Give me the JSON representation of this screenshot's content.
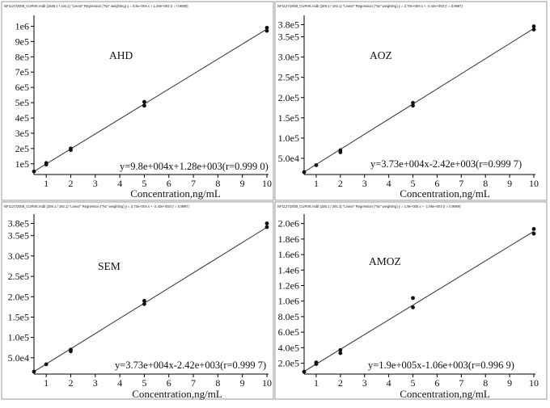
{
  "figure": {
    "charts": [
      {
        "header": "NF1127/2008_CURVE.mdb (2465.1 / 134.1)  \"Linear\"  Regression (\"Nx\" weighting)  y = 9.8e+004 x + 1.28e+003 (r = 0.9990)",
        "analyte": "AHD",
        "equation": "y=9.8e+004x+1.28e+003(r=0.999 0)",
        "xlabel": "Concentration,ng/mL",
        "yticks": [
          {
            "v": 100000,
            "label": "1e5"
          },
          {
            "v": 200000,
            "label": "2e5"
          },
          {
            "v": 300000,
            "label": "3e5"
          },
          {
            "v": 400000,
            "label": "4e5"
          },
          {
            "v": 500000,
            "label": "5e5"
          },
          {
            "v": 600000,
            "label": "6e5"
          },
          {
            "v": 700000,
            "label": "7e5"
          },
          {
            "v": 800000,
            "label": "8e5"
          },
          {
            "v": 900000,
            "label": "9e5"
          },
          {
            "v": 1000000,
            "label": "1e6"
          }
        ]
      },
      {
        "header": "NF1127/2008_CURVE.mdb (209.1 / 102.1)  \"Linear\"  Regression (\"Nx\" weighting)  y = 3.73e+004 x + -2.42e+003 (r = 0.9997)",
        "analyte": "AOZ",
        "equation": "y=3.73e+004x-2.42e+003(r=0.999 7)",
        "xlabel": "Concentration,ng/mL",
        "yticks": [
          {
            "v": 50000,
            "label": "5.0e4"
          },
          {
            "v": 100000,
            "label": "1.0e5"
          },
          {
            "v": 150000,
            "label": "1.5e5"
          },
          {
            "v": 200000,
            "label": "2.0e5"
          },
          {
            "v": 250000,
            "label": "2.5e5"
          },
          {
            "v": 300000,
            "label": "3.0e5"
          },
          {
            "v": 350000,
            "label": "3.5e5"
          },
          {
            "v": 380000,
            "label": "3.8e5"
          }
        ]
      },
      {
        "header": "NF1127/2008_CURVE.mdb (209.1 / 192.1)  \"Linear\"  Regression (\"Nx\" weighting)  y = 3.73e+004 x + -2.42e+003 (r = 0.9997)",
        "analyte": "SEM",
        "equation": "y=3.73e+004x-2.42e+003(r=0.999 7)",
        "xlabel": "Concentration,ng/mL",
        "yticks": [
          {
            "v": 50000,
            "label": "5.0e4"
          },
          {
            "v": 100000,
            "label": "1.0e5"
          },
          {
            "v": 150000,
            "label": "1.5e5"
          },
          {
            "v": 200000,
            "label": "2.0e5"
          },
          {
            "v": 250000,
            "label": "2.5e5"
          },
          {
            "v": 300000,
            "label": "3.0e5"
          },
          {
            "v": 350000,
            "label": "3.5e5"
          },
          {
            "v": 380000,
            "label": "3.8e5"
          }
        ]
      },
      {
        "header": "NF1127/2008_CURVE.mdb (335.1 / 291.3)  \"Linear\"  Regression (\"Nx\" weighting)  y = 1.9e+005 x + -1.06e+003 (r = 0.9969)",
        "analyte": "AMOZ",
        "equation": "y=1.9e+005x-1.06e+003(r=0.996 9)",
        "xlabel": "Concentration,ng/mL",
        "yticks": [
          {
            "v": 200000,
            "label": "2.0e5"
          },
          {
            "v": 400000,
            "label": "4.0e5"
          },
          {
            "v": 600000,
            "label": "6.0e5"
          },
          {
            "v": 800000,
            "label": "8.0e5"
          },
          {
            "v": 1000000,
            "label": "1.0e6"
          },
          {
            "v": 1200000,
            "label": "1.2e6"
          },
          {
            "v": 1400000,
            "label": "1.4e6"
          },
          {
            "v": 1600000,
            "label": "1.6e6"
          },
          {
            "v": 1800000,
            "label": "1.8e6"
          },
          {
            "v": 2000000,
            "label": "2.0e6"
          }
        ]
      }
    ]
  },
  "chart_data": [
    {
      "type": "scatter",
      "title": "AHD",
      "xlabel": "Concentration,ng/mL",
      "ylabel": "",
      "xlim": [
        0.5,
        10
      ],
      "ylim": [
        30000,
        1050000
      ],
      "xticks": [
        1,
        2,
        3,
        4,
        5,
        6,
        7,
        8,
        9,
        10
      ],
      "grid": false,
      "points": [
        {
          "x": 0.5,
          "y": 50000
        },
        {
          "x": 1,
          "y": 95000
        },
        {
          "x": 1,
          "y": 105000
        },
        {
          "x": 2,
          "y": 190000
        },
        {
          "x": 2,
          "y": 200000
        },
        {
          "x": 5,
          "y": 480000
        },
        {
          "x": 5,
          "y": 505000
        },
        {
          "x": 10,
          "y": 970000
        },
        {
          "x": 10,
          "y": 990000
        }
      ],
      "fit": {
        "slope": 98000,
        "intercept": 1280,
        "r": 0.999
      },
      "equation": "y=9.8e+004x+1.28e+003(r=0.999 0)"
    },
    {
      "type": "scatter",
      "title": "AOZ",
      "xlabel": "Concentration,ng/mL",
      "ylabel": "",
      "xlim": [
        0.5,
        10
      ],
      "ylim": [
        10000,
        395000
      ],
      "xticks": [
        1,
        2,
        3,
        4,
        5,
        6,
        7,
        8,
        9,
        10
      ],
      "grid": false,
      "points": [
        {
          "x": 0.5,
          "y": 16000
        },
        {
          "x": 1,
          "y": 33000
        },
        {
          "x": 2,
          "y": 65000
        },
        {
          "x": 2,
          "y": 70000
        },
        {
          "x": 5,
          "y": 180000
        },
        {
          "x": 5,
          "y": 187000
        },
        {
          "x": 10,
          "y": 368000
        },
        {
          "x": 10,
          "y": 376000
        }
      ],
      "fit": {
        "slope": 37300,
        "intercept": -2420,
        "r": 0.9997
      },
      "equation": "y=3.73e+004x-2.42e+003(r=0.999 7)"
    },
    {
      "type": "scatter",
      "title": "SEM",
      "xlabel": "Concentration,ng/mL",
      "ylabel": "",
      "xlim": [
        0.5,
        10
      ],
      "ylim": [
        10000,
        395000
      ],
      "xticks": [
        1,
        2,
        3,
        4,
        5,
        6,
        7,
        8,
        9,
        10
      ],
      "grid": false,
      "points": [
        {
          "x": 0.5,
          "y": 16000
        },
        {
          "x": 1,
          "y": 34000
        },
        {
          "x": 2,
          "y": 66000
        },
        {
          "x": 2,
          "y": 70000
        },
        {
          "x": 5,
          "y": 182000
        },
        {
          "x": 5,
          "y": 190000
        },
        {
          "x": 10,
          "y": 371000
        },
        {
          "x": 10,
          "y": 380000
        }
      ],
      "fit": {
        "slope": 37300,
        "intercept": -2420,
        "r": 0.9997
      },
      "equation": "y=3.73e+004x-2.42e+003(r=0.999 7)"
    },
    {
      "type": "scatter",
      "title": "AMOZ",
      "xlabel": "Concentration,ng/mL",
      "ylabel": "",
      "xlim": [
        0.5,
        10
      ],
      "ylim": [
        60000,
        2080000
      ],
      "xticks": [
        1,
        2,
        3,
        4,
        5,
        6,
        7,
        8,
        9,
        10
      ],
      "grid": false,
      "points": [
        {
          "x": 0.5,
          "y": 90000
        },
        {
          "x": 1,
          "y": 190000
        },
        {
          "x": 1,
          "y": 210000
        },
        {
          "x": 2,
          "y": 330000
        },
        {
          "x": 2,
          "y": 370000
        },
        {
          "x": 5,
          "y": 920000
        },
        {
          "x": 5,
          "y": 1040000
        },
        {
          "x": 10,
          "y": 1870000
        },
        {
          "x": 10,
          "y": 1930000
        }
      ],
      "fit": {
        "slope": 190000,
        "intercept": -1060,
        "r": 0.9969
      },
      "equation": "y=1.9e+005x-1.06e+003(r=0.996 9)"
    }
  ]
}
